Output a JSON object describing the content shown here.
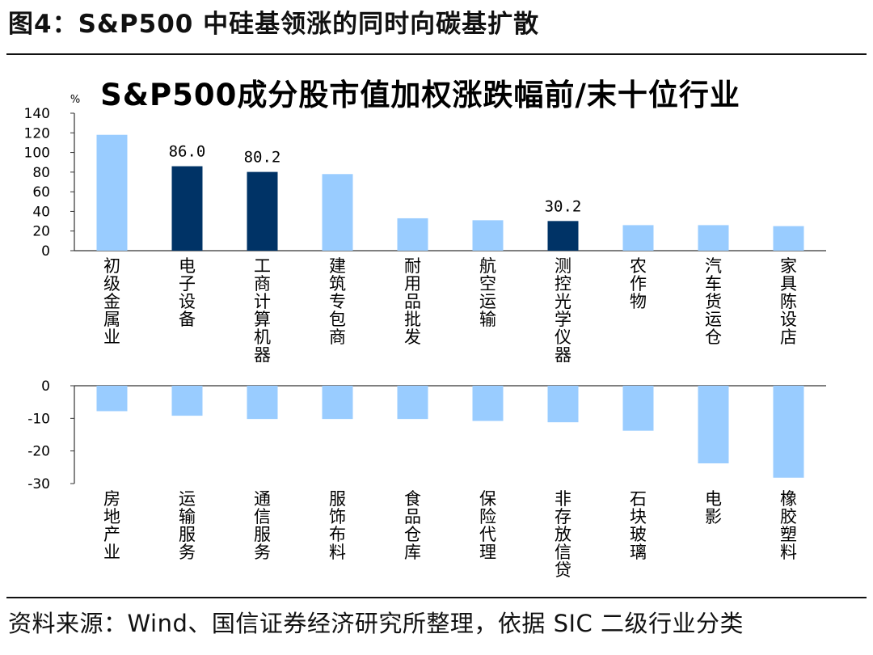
{
  "figure": {
    "title": "图4：S&P500 中硅基领涨的同时向碳基扩散",
    "source": "资料来源：Wind、国信证券经济研究所整理，依据 SIC 二级行业分类"
  },
  "colors": {
    "light": "#99CCFF",
    "dark": "#003366",
    "axis": "#333333"
  },
  "chart_data": [
    {
      "type": "bar",
      "title": "S&P500成分股市值加权涨跌幅前/末十位行业",
      "unit_label": "%",
      "ylim": [
        0,
        140
      ],
      "yticks": [
        0,
        20,
        40,
        60,
        80,
        100,
        120,
        140
      ],
      "categories": [
        "初级金属业",
        "电子设备",
        "工商计算机器",
        "建筑专包商",
        "耐用品批发",
        "航空运输",
        "测控光学仪器",
        "农作物",
        "汽车货运仓",
        "家具陈设店"
      ],
      "values": [
        118,
        86.0,
        80.2,
        78,
        33,
        31,
        30.2,
        26,
        26,
        25
      ],
      "highlighted": [
        false,
        true,
        true,
        false,
        false,
        false,
        true,
        false,
        false,
        false
      ],
      "data_labels": [
        "",
        "86.0",
        "80.2",
        "",
        "",
        "",
        "30.2",
        "",
        "",
        ""
      ],
      "grid": false
    },
    {
      "type": "bar",
      "ylim": [
        -30,
        0
      ],
      "yticks": [
        0,
        -10,
        -20,
        -30
      ],
      "categories": [
        "房地产业",
        "运输服务",
        "通信服务",
        "服饰布料",
        "食品仓库",
        "保险代理",
        "非存放信贷",
        "石块玻璃",
        "电影",
        "橡胶塑料"
      ],
      "values": [
        -7.8,
        -9.2,
        -10.2,
        -10.2,
        -10.2,
        -10.8,
        -11.2,
        -13.8,
        -23.8,
        -28.2
      ],
      "grid": false
    }
  ]
}
